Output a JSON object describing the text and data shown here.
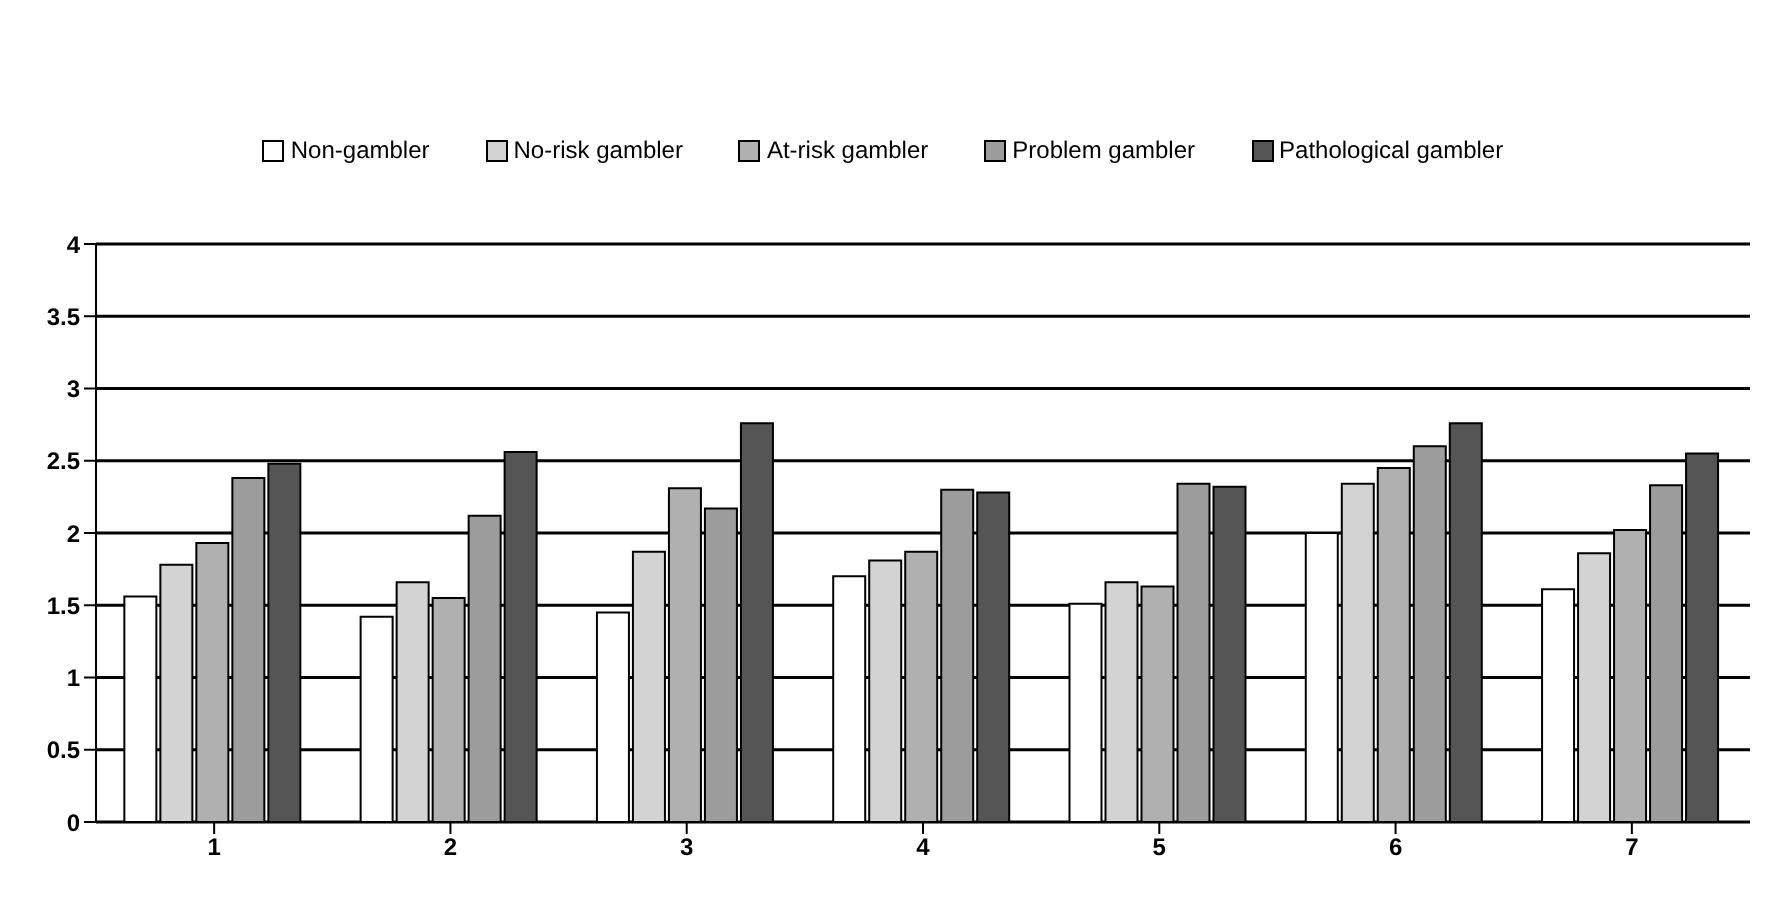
{
  "chart_data": {
    "type": "bar",
    "categories": [
      "1",
      "2",
      "3",
      "4",
      "5",
      "6",
      "7"
    ],
    "series": [
      {
        "name": "Non-gambler",
        "color": "#ffffff",
        "values": [
          1.56,
          1.42,
          1.45,
          1.7,
          1.51,
          2.0,
          1.61
        ]
      },
      {
        "name": "No-risk gambler",
        "color": "#d3d3d3",
        "values": [
          1.78,
          1.66,
          1.87,
          1.81,
          1.66,
          2.34,
          1.86
        ]
      },
      {
        "name": "At-risk gambler",
        "color": "#b0b0b0",
        "values": [
          1.93,
          1.55,
          2.31,
          1.87,
          1.63,
          2.45,
          2.02
        ]
      },
      {
        "name": "Problem gambler",
        "color": "#9c9c9c",
        "values": [
          2.38,
          2.12,
          2.17,
          2.3,
          2.34,
          2.6,
          2.33
        ]
      },
      {
        "name": "Pathological gambler",
        "color": "#555555",
        "values": [
          2.48,
          2.56,
          2.76,
          2.28,
          2.32,
          2.76,
          2.55
        ]
      }
    ],
    "ylim": [
      0,
      4
    ],
    "yticks": [
      0,
      0.5,
      1,
      1.5,
      2,
      2.5,
      3,
      3.5,
      4
    ],
    "grid": "y",
    "legend": "top"
  }
}
